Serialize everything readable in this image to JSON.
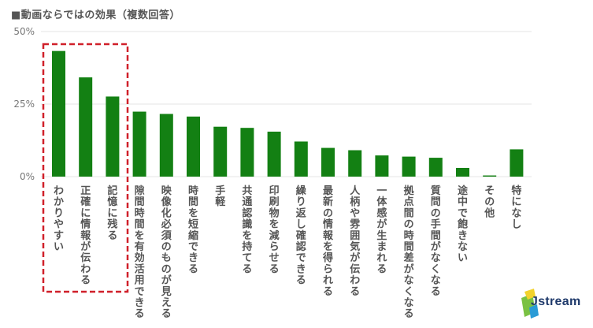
{
  "title": "■動画ならではの効果（複数回答）",
  "logo": {
    "text": "Jstream"
  },
  "colors": {
    "bar": "#138013",
    "highlight": "#d0202a",
    "grid": "#e6e6e6",
    "logo_green": "#7ac143",
    "logo_yellow": "#f2d22c",
    "logo_blue": "#2a9bd6"
  },
  "chart_data": {
    "type": "bar",
    "yticks": [
      "50%",
      "25%",
      "0%"
    ],
    "ylim": [
      0,
      50
    ],
    "grid": true,
    "categories": [
      "わかりやすい",
      "正確に情報が伝わる",
      "記憶に残る",
      "隙間時間を有効活用できる",
      "映像化必須のものが見える",
      "時間を短縮できる",
      "手軽",
      "共通認識を持てる",
      "印刷物を減らせる",
      "繰り返し確認できる",
      "最新の情報を得られる",
      "人柄や雰囲気が伝わる",
      "一体感が生まれる",
      "拠点間の時間差がなくなる",
      "質問の手間がなくなる",
      "途中で飽きない",
      "その他",
      "特になし"
    ],
    "values": [
      43.3,
      34.2,
      27.6,
      22.4,
      21.6,
      20.7,
      17.2,
      16.8,
      15.5,
      12.1,
      9.9,
      9.1,
      7.3,
      6.9,
      6.5,
      3.0,
      0.4,
      9.4
    ],
    "highlighted_categories": [
      "わかりやすい",
      "正確に情報が伝わる",
      "記憶に残る"
    ]
  }
}
